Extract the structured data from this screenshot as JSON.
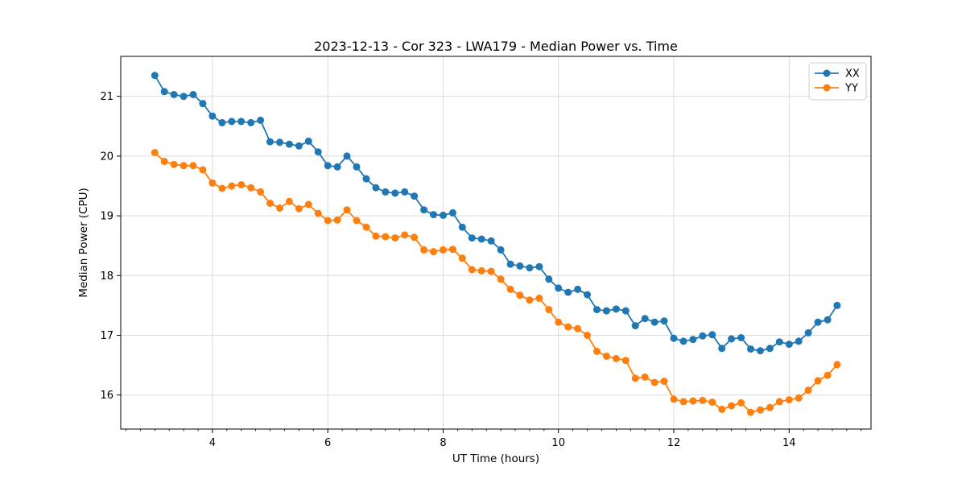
{
  "chart_data": {
    "type": "line",
    "title": "2023-12-13 - Cor 323 - LWA179 - Median Power vs. Time",
    "xlabel": "UT Time (hours)",
    "ylabel": "Median Power (CPU)",
    "xlim": [
      2.41,
      15.42
    ],
    "ylim": [
      15.43,
      21.67
    ],
    "x_major_ticks": [
      4,
      6,
      8,
      10,
      12,
      14
    ],
    "x_minor_tick_step": 0.25,
    "y_major_ticks": [
      16,
      17,
      18,
      19,
      20,
      21
    ],
    "grid": true,
    "legend_position": "upper right",
    "x": [
      3.0,
      3.167,
      3.333,
      3.5,
      3.667,
      3.833,
      4.0,
      4.167,
      4.333,
      4.5,
      4.667,
      4.833,
      5.0,
      5.167,
      5.333,
      5.5,
      5.667,
      5.833,
      6.0,
      6.167,
      6.333,
      6.5,
      6.667,
      6.833,
      7.0,
      7.167,
      7.333,
      7.5,
      7.667,
      7.833,
      8.0,
      8.167,
      8.333,
      8.5,
      8.667,
      8.833,
      9.0,
      9.167,
      9.333,
      9.5,
      9.667,
      9.833,
      10.0,
      10.167,
      10.333,
      10.5,
      10.667,
      10.833,
      11.0,
      11.167,
      11.333,
      11.5,
      11.667,
      11.833,
      12.0,
      12.167,
      12.333,
      12.5,
      12.667,
      12.833,
      13.0,
      13.167,
      13.333,
      13.5,
      13.667,
      13.833,
      14.0,
      14.167,
      14.333,
      14.5,
      14.667,
      14.833
    ],
    "series": [
      {
        "name": "XX",
        "color": "#1f77b4",
        "marker": "circle",
        "values": [
          21.35,
          21.08,
          21.03,
          21.0,
          21.03,
          20.88,
          20.67,
          20.56,
          20.58,
          20.58,
          20.56,
          20.6,
          20.24,
          20.23,
          20.2,
          20.17,
          20.25,
          20.07,
          19.84,
          19.82,
          20.0,
          19.82,
          19.62,
          19.47,
          19.4,
          19.38,
          19.4,
          19.33,
          19.1,
          19.02,
          19.01,
          19.05,
          18.81,
          18.63,
          18.61,
          18.58,
          18.43,
          18.19,
          18.16,
          18.13,
          18.15,
          17.94,
          17.79,
          17.72,
          17.77,
          17.68,
          17.43,
          17.41,
          17.44,
          17.41,
          17.16,
          17.28,
          17.22,
          17.24,
          16.95,
          16.9,
          16.93,
          16.99,
          17.01,
          16.78,
          16.94,
          16.96,
          16.77,
          16.74,
          16.78,
          16.89,
          16.85,
          16.9,
          17.04,
          17.22,
          17.26,
          17.5
        ]
      },
      {
        "name": "YY",
        "color": "#ff7f0e",
        "marker": "circle",
        "values": [
          20.06,
          19.91,
          19.86,
          19.84,
          19.84,
          19.77,
          19.55,
          19.46,
          19.5,
          19.52,
          19.47,
          19.4,
          19.21,
          19.13,
          19.24,
          19.12,
          19.19,
          19.04,
          18.92,
          18.93,
          19.1,
          18.92,
          18.81,
          18.66,
          18.65,
          18.63,
          18.68,
          18.64,
          18.43,
          18.4,
          18.43,
          18.44,
          18.29,
          18.1,
          18.08,
          18.07,
          17.94,
          17.77,
          17.67,
          17.59,
          17.62,
          17.43,
          17.22,
          17.14,
          17.11,
          17.0,
          16.73,
          16.65,
          16.61,
          16.58,
          16.28,
          16.3,
          16.21,
          16.23,
          15.93,
          15.89,
          15.9,
          15.91,
          15.88,
          15.76,
          15.82,
          15.87,
          15.71,
          15.75,
          15.79,
          15.89,
          15.92,
          15.95,
          16.08,
          16.24,
          16.33,
          16.51
        ]
      }
    ],
    "colors": {
      "background": "#ffffff",
      "grid": "#dcdcdc",
      "spine": "#000000",
      "tick": "#000000",
      "text": "#000000",
      "legend_border": "#cccccc",
      "legend_background": "#ffffff"
    }
  }
}
